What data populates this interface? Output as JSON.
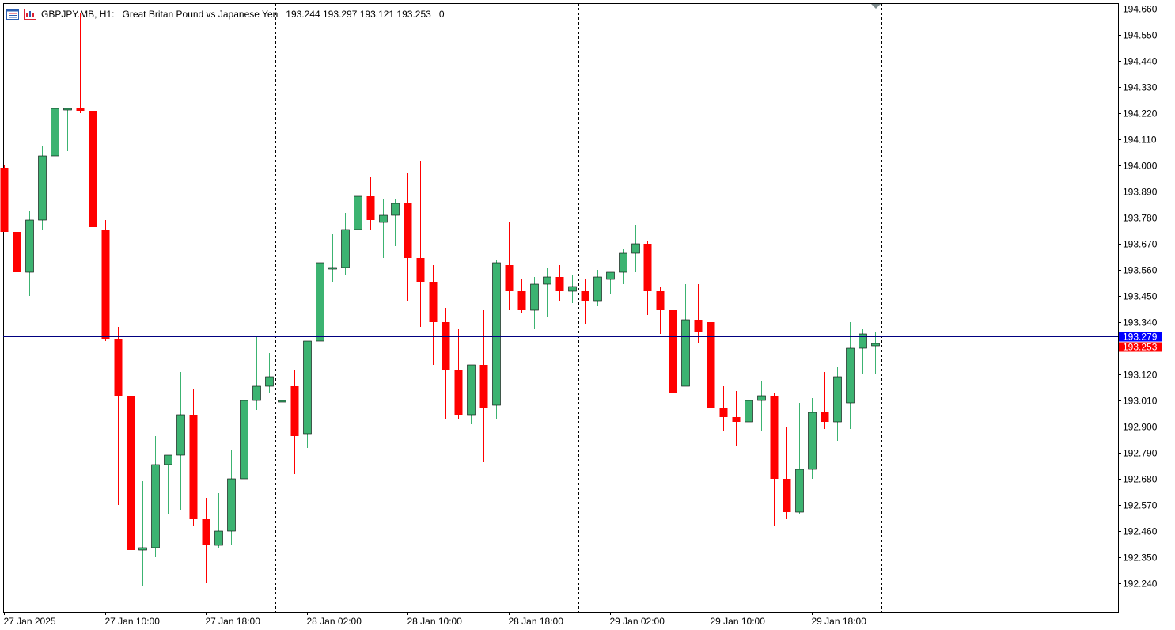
{
  "header": {
    "symbol": "GBPJPY.MB, H1:",
    "description": "Great Britan Pound vs Japanese Yen",
    "ohlc": "193.244 193.297 193.121 193.253",
    "tick_volume": "0",
    "icons": [
      "chart-window-icon",
      "bars-menu-icon"
    ]
  },
  "colors": {
    "bull": "#3cb371",
    "bear": "#ff0000",
    "bid_line": "#ff0000",
    "ask_line": "#000080",
    "ask_label_bg": "#0000ff",
    "bid_label_bg": "#ff0000",
    "grid": "#000000",
    "text": "#000000"
  },
  "chart_data": {
    "type": "candlestick",
    "symbol": "GBPJPY.MB",
    "timeframe": "H1",
    "ylim": [
      192.17,
      194.67
    ],
    "y_ticks": [
      "194.660",
      "194.550",
      "194.440",
      "194.330",
      "194.220",
      "194.110",
      "194.000",
      "193.890",
      "193.780",
      "193.670",
      "193.560",
      "193.450",
      "193.340",
      "193.230",
      "193.120",
      "193.010",
      "192.900",
      "192.790",
      "192.680",
      "192.570",
      "192.460",
      "192.350",
      "192.240"
    ],
    "x_labels": [
      "27 Jan 2025",
      "27 Jan 10:00",
      "27 Jan 18:00",
      "28 Jan 02:00",
      "28 Jan 10:00",
      "28 Jan 18:00",
      "29 Jan 02:00",
      "29 Jan 10:00",
      "29 Jan 18:00"
    ],
    "x_label_bars": [
      0,
      8,
      16,
      24,
      32,
      40,
      48,
      56,
      64
    ],
    "period_separators_after_bar": [
      21.5,
      45.5,
      69.5
    ],
    "ask_price": "193.279",
    "bid_price": "193.253",
    "ask_value": 193.279,
    "bid_value": 193.253,
    "candles": [
      {
        "o": 193.99,
        "h": 194.0,
        "l": 193.72,
        "c": 193.72
      },
      {
        "o": 193.72,
        "h": 193.8,
        "l": 193.46,
        "c": 193.55
      },
      {
        "o": 193.55,
        "h": 193.81,
        "l": 193.45,
        "c": 193.77
      },
      {
        "o": 193.77,
        "h": 194.08,
        "l": 193.73,
        "c": 194.04
      },
      {
        "o": 194.04,
        "h": 194.3,
        "l": 194.03,
        "c": 194.24
      },
      {
        "o": 194.24,
        "h": 194.24,
        "l": 194.06,
        "c": 194.24
      },
      {
        "o": 194.24,
        "h": 194.64,
        "l": 194.22,
        "c": 194.23
      },
      {
        "o": 194.23,
        "h": 194.23,
        "l": 193.74,
        "c": 193.74
      },
      {
        "o": 193.73,
        "h": 193.77,
        "l": 193.26,
        "c": 193.27
      },
      {
        "o": 193.27,
        "h": 193.32,
        "l": 192.57,
        "c": 193.03
      },
      {
        "o": 193.03,
        "h": 193.03,
        "l": 192.21,
        "c": 192.38
      },
      {
        "o": 192.38,
        "h": 192.67,
        "l": 192.23,
        "c": 192.39
      },
      {
        "o": 192.39,
        "h": 192.86,
        "l": 192.35,
        "c": 192.74
      },
      {
        "o": 192.74,
        "h": 192.78,
        "l": 192.53,
        "c": 192.78
      },
      {
        "o": 192.78,
        "h": 193.13,
        "l": 192.55,
        "c": 192.95
      },
      {
        "o": 192.95,
        "h": 193.06,
        "l": 192.48,
        "c": 192.51
      },
      {
        "o": 192.51,
        "h": 192.6,
        "l": 192.24,
        "c": 192.4
      },
      {
        "o": 192.4,
        "h": 192.62,
        "l": 192.39,
        "c": 192.46
      },
      {
        "o": 192.46,
        "h": 192.8,
        "l": 192.4,
        "c": 192.68
      },
      {
        "o": 192.68,
        "h": 193.14,
        "l": 192.68,
        "c": 193.01
      },
      {
        "o": 193.01,
        "h": 193.28,
        "l": 192.97,
        "c": 193.07
      },
      {
        "o": 193.07,
        "h": 193.21,
        "l": 193.04,
        "c": 193.11
      },
      {
        "o": 193.01,
        "h": 193.03,
        "l": 192.93,
        "c": 193.01
      },
      {
        "o": 193.07,
        "h": 193.14,
        "l": 192.7,
        "c": 192.86
      },
      {
        "o": 192.87,
        "h": 193.26,
        "l": 192.81,
        "c": 193.26
      },
      {
        "o": 193.26,
        "h": 193.73,
        "l": 193.19,
        "c": 193.59
      },
      {
        "o": 193.57,
        "h": 193.71,
        "l": 193.51,
        "c": 193.57
      },
      {
        "o": 193.57,
        "h": 193.8,
        "l": 193.54,
        "c": 193.73
      },
      {
        "o": 193.73,
        "h": 193.95,
        "l": 193.71,
        "c": 193.87
      },
      {
        "o": 193.87,
        "h": 193.95,
        "l": 193.73,
        "c": 193.77
      },
      {
        "o": 193.76,
        "h": 193.86,
        "l": 193.61,
        "c": 193.79
      },
      {
        "o": 193.79,
        "h": 193.86,
        "l": 193.66,
        "c": 193.84
      },
      {
        "o": 193.84,
        "h": 193.97,
        "l": 193.43,
        "c": 193.61
      },
      {
        "o": 193.61,
        "h": 194.02,
        "l": 193.32,
        "c": 193.51
      },
      {
        "o": 193.51,
        "h": 193.58,
        "l": 193.16,
        "c": 193.34
      },
      {
        "o": 193.34,
        "h": 193.4,
        "l": 192.93,
        "c": 193.14
      },
      {
        "o": 193.14,
        "h": 193.31,
        "l": 192.93,
        "c": 192.95
      },
      {
        "o": 192.95,
        "h": 193.16,
        "l": 192.91,
        "c": 193.16
      },
      {
        "o": 193.16,
        "h": 193.39,
        "l": 192.75,
        "c": 192.98
      },
      {
        "o": 192.99,
        "h": 193.6,
        "l": 192.93,
        "c": 193.59
      },
      {
        "o": 193.58,
        "h": 193.76,
        "l": 193.39,
        "c": 193.47
      },
      {
        "o": 193.47,
        "h": 193.52,
        "l": 193.38,
        "c": 193.39
      },
      {
        "o": 193.39,
        "h": 193.53,
        "l": 193.31,
        "c": 193.5
      },
      {
        "o": 193.5,
        "h": 193.57,
        "l": 193.36,
        "c": 193.53
      },
      {
        "o": 193.53,
        "h": 193.58,
        "l": 193.43,
        "c": 193.47
      },
      {
        "o": 193.47,
        "h": 193.54,
        "l": 193.42,
        "c": 193.49
      },
      {
        "o": 193.47,
        "h": 193.52,
        "l": 193.33,
        "c": 193.43
      },
      {
        "o": 193.43,
        "h": 193.56,
        "l": 193.41,
        "c": 193.53
      },
      {
        "o": 193.52,
        "h": 193.55,
        "l": 193.46,
        "c": 193.55
      },
      {
        "o": 193.55,
        "h": 193.65,
        "l": 193.5,
        "c": 193.63
      },
      {
        "o": 193.63,
        "h": 193.75,
        "l": 193.55,
        "c": 193.67
      },
      {
        "o": 193.67,
        "h": 193.68,
        "l": 193.37,
        "c": 193.47
      },
      {
        "o": 193.47,
        "h": 193.49,
        "l": 193.29,
        "c": 193.39
      },
      {
        "o": 193.39,
        "h": 193.4,
        "l": 193.03,
        "c": 193.04
      },
      {
        "o": 193.07,
        "h": 193.5,
        "l": 193.07,
        "c": 193.35
      },
      {
        "o": 193.35,
        "h": 193.5,
        "l": 193.25,
        "c": 193.3
      },
      {
        "o": 193.34,
        "h": 193.46,
        "l": 192.96,
        "c": 192.98
      },
      {
        "o": 192.98,
        "h": 193.07,
        "l": 192.88,
        "c": 192.94
      },
      {
        "o": 192.94,
        "h": 193.05,
        "l": 192.82,
        "c": 192.92
      },
      {
        "o": 192.92,
        "h": 193.1,
        "l": 192.86,
        "c": 193.01
      },
      {
        "o": 193.01,
        "h": 193.09,
        "l": 192.88,
        "c": 193.03
      },
      {
        "o": 193.03,
        "h": 193.04,
        "l": 192.48,
        "c": 192.68
      },
      {
        "o": 192.68,
        "h": 192.9,
        "l": 192.51,
        "c": 192.54
      },
      {
        "o": 192.54,
        "h": 193.0,
        "l": 192.53,
        "c": 192.72
      },
      {
        "o": 192.72,
        "h": 193.02,
        "l": 192.68,
        "c": 192.96
      },
      {
        "o": 192.96,
        "h": 193.13,
        "l": 192.89,
        "c": 192.92
      },
      {
        "o": 192.92,
        "h": 193.15,
        "l": 192.84,
        "c": 193.11
      },
      {
        "o": 193.0,
        "h": 193.34,
        "l": 192.89,
        "c": 193.23
      },
      {
        "o": 193.23,
        "h": 193.31,
        "l": 193.12,
        "c": 193.29
      },
      {
        "o": 193.24,
        "h": 193.3,
        "l": 193.12,
        "c": 193.25
      }
    ]
  }
}
